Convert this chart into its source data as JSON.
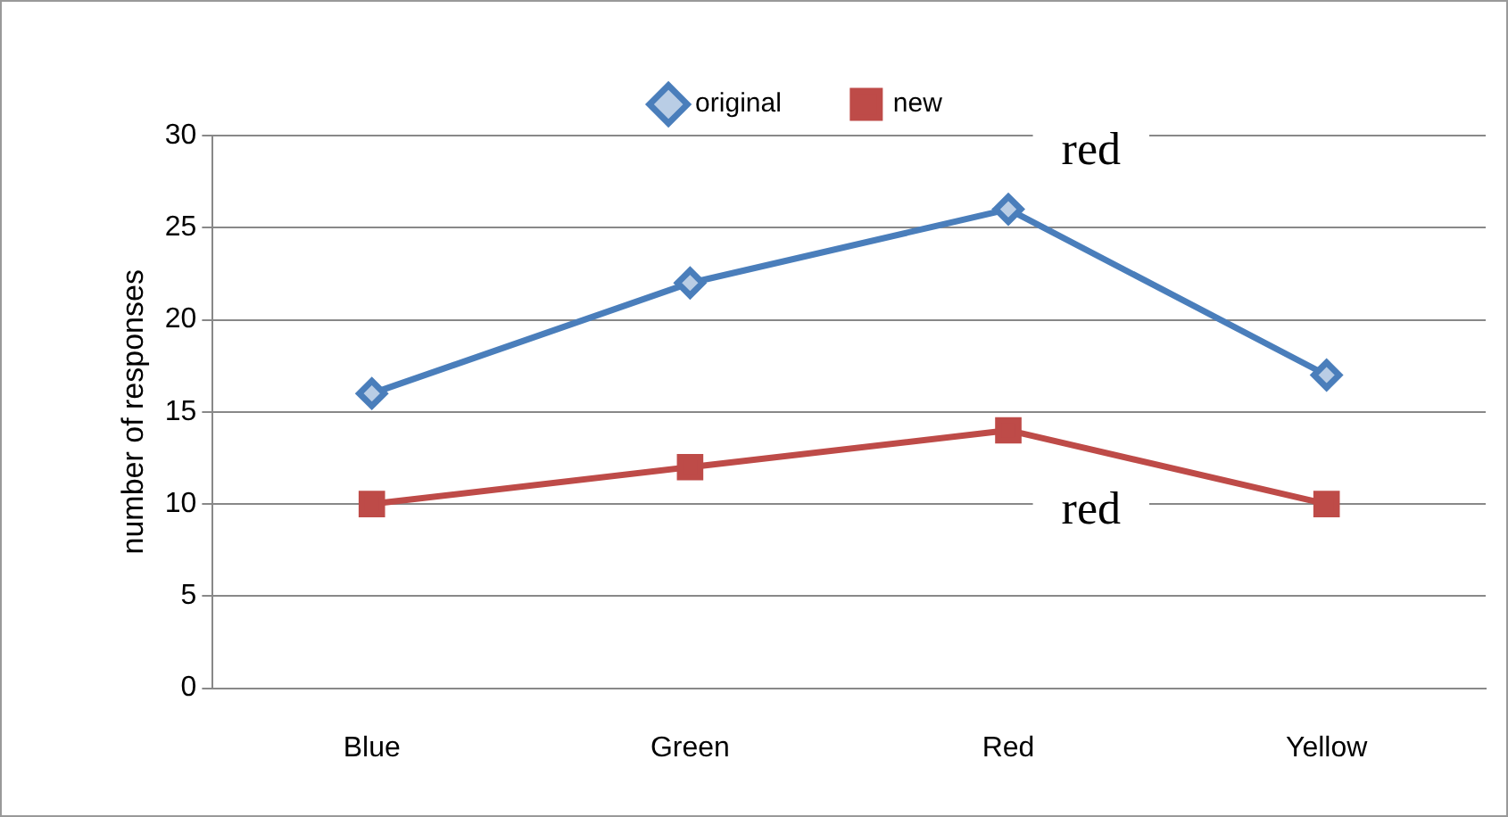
{
  "chart_data": {
    "type": "line",
    "ylabel": "number of responses",
    "categories": [
      "Blue",
      "Green",
      "Red",
      "Yellow"
    ],
    "series": [
      {
        "name": "original",
        "color": "#4a7ebb",
        "values": [
          16,
          22,
          26,
          17
        ],
        "marker": "diamond"
      },
      {
        "name": "new",
        "color": "#be4b48",
        "values": [
          10,
          12,
          14,
          10
        ],
        "marker": "square"
      }
    ],
    "ylim": [
      0,
      30
    ],
    "yticks": [
      0,
      5,
      10,
      15,
      20,
      25,
      30
    ],
    "grid": "y",
    "legend": "top",
    "line_style": "solid",
    "annotations": [
      "red",
      "red"
    ]
  }
}
